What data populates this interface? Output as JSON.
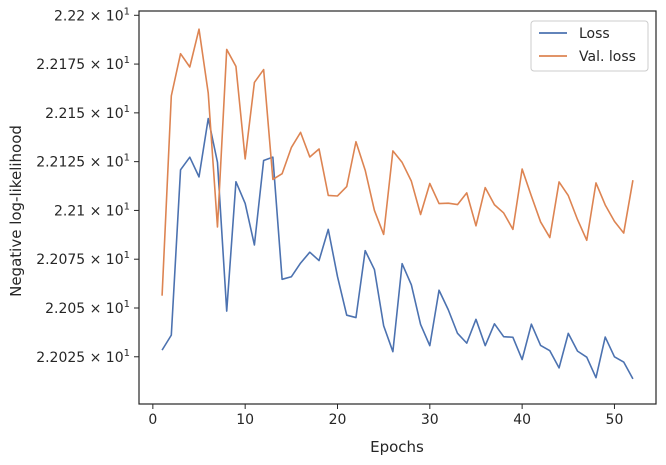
{
  "chart_data": {
    "type": "line",
    "title": "",
    "xlabel": "Epochs",
    "ylabel": "Negative log-likelihood",
    "xlim": [
      -1.5,
      54.5
    ],
    "ylim": [
      22.0008,
      22.2022
    ],
    "grid": false,
    "legend_position": "top-right",
    "x_ticks": [
      {
        "value": 0,
        "label": "0"
      },
      {
        "value": 10,
        "label": "10"
      },
      {
        "value": 20,
        "label": "20"
      },
      {
        "value": 30,
        "label": "30"
      },
      {
        "value": 40,
        "label": "40"
      },
      {
        "value": 50,
        "label": "50"
      }
    ],
    "y_ticks": [
      {
        "value": 22.025,
        "label": "2.2025 × 10",
        "exp": "1"
      },
      {
        "value": 22.05,
        "label": "2.205 × 10",
        "exp": "1"
      },
      {
        "value": 22.075,
        "label": "2.2075 × 10",
        "exp": "1"
      },
      {
        "value": 22.1,
        "label": "2.21 × 10",
        "exp": "1"
      },
      {
        "value": 22.125,
        "label": "2.2125 × 10",
        "exp": "1"
      },
      {
        "value": 22.15,
        "label": "2.215 × 10",
        "exp": "1"
      },
      {
        "value": 22.175,
        "label": "2.2175 × 10",
        "exp": "1"
      },
      {
        "value": 22.2,
        "label": "2.22 × 10",
        "exp": "1"
      }
    ],
    "x": [
      1,
      2,
      3,
      4,
      5,
      6,
      7,
      8,
      9,
      10,
      11,
      12,
      13,
      14,
      15,
      16,
      17,
      18,
      19,
      20,
      21,
      22,
      23,
      24,
      25,
      26,
      27,
      28,
      29,
      30,
      31,
      32,
      33,
      34,
      35,
      36,
      37,
      38,
      39,
      40,
      41,
      42,
      43,
      44,
      45,
      46,
      47,
      48,
      49,
      50,
      51,
      52
    ],
    "series": [
      {
        "name": "Loss",
        "color": "#4c72b0",
        "values": [
          22.0284,
          22.0361,
          22.1208,
          22.1273,
          22.1172,
          22.1471,
          22.1247,
          22.0484,
          22.1147,
          22.1036,
          22.0823,
          22.1256,
          22.1273,
          22.0647,
          22.066,
          22.073,
          22.0786,
          22.0743,
          22.0903,
          22.0661,
          22.0463,
          22.0451,
          22.0794,
          22.0697,
          22.0409,
          22.0276,
          22.0727,
          22.0619,
          22.0416,
          22.0307,
          22.0591,
          22.0491,
          22.037,
          22.032,
          22.0442,
          22.0307,
          22.0419,
          22.0353,
          22.035,
          22.0236,
          22.0417,
          22.0308,
          22.0281,
          22.0193,
          22.037,
          22.0279,
          22.0248,
          22.0143,
          22.0351,
          22.025,
          22.0223,
          22.0137
        ]
      },
      {
        "name": "Val. loss",
        "color": "#dd8452",
        "values": [
          22.0563,
          22.1587,
          22.1803,
          22.1735,
          22.1929,
          22.1601,
          22.0915,
          22.1825,
          22.1738,
          22.1264,
          22.1656,
          22.1722,
          22.1159,
          22.1188,
          22.1322,
          22.14,
          22.1274,
          22.1315,
          22.1077,
          22.1074,
          22.1122,
          22.1352,
          22.1206,
          22.1,
          22.0877,
          22.1305,
          22.1246,
          22.115,
          22.0979,
          22.1138,
          22.1035,
          22.1037,
          22.103,
          22.109,
          22.0921,
          22.1117,
          22.1029,
          22.0987,
          22.0903,
          22.1212,
          22.1074,
          22.0941,
          22.0861,
          22.1146,
          22.1076,
          22.0953,
          22.0847,
          22.1141,
          22.1028,
          22.0944,
          22.0884,
          22.1155
        ]
      }
    ]
  }
}
